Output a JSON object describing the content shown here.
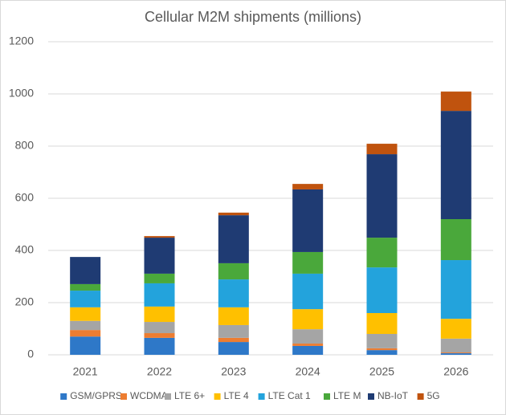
{
  "chart_data": {
    "type": "stacked_bar",
    "title": "Cellular M2M shipments (millions)",
    "categories": [
      "2021",
      "2022",
      "2023",
      "2024",
      "2025",
      "2026"
    ],
    "series": [
      {
        "name": "GSM/GPRS",
        "color": "#2e78c8",
        "values": [
          70,
          65,
          49,
          34,
          18,
          6
        ]
      },
      {
        "name": "WCDMA",
        "color": "#ed7d31",
        "values": [
          25,
          18,
          16,
          9,
          7,
          3
        ]
      },
      {
        "name": "LTE 6+",
        "color": "#a5a5a5",
        "values": [
          35,
          43,
          49,
          55,
          55,
          53
        ]
      },
      {
        "name": "LTE 4",
        "color": "#ffc000",
        "values": [
          52,
          59,
          68,
          77,
          80,
          76
        ]
      },
      {
        "name": "LTE Cat 1",
        "color": "#23a3dc",
        "values": [
          64,
          89,
          107,
          136,
          175,
          225
        ]
      },
      {
        "name": "LTE M",
        "color": "#4aa83b",
        "values": [
          25,
          37,
          62,
          83,
          114,
          157
        ]
      },
      {
        "name": "NB-IoT",
        "color": "#1f3b73",
        "values": [
          104,
          138,
          184,
          240,
          320,
          415
        ]
      },
      {
        "name": "5G",
        "color": "#c0530e",
        "values": [
          0,
          6,
          10,
          21,
          40,
          74
        ]
      }
    ],
    "ylim": [
      0,
      1200
    ],
    "yticks": [
      0,
      200,
      400,
      600,
      800,
      1000,
      1200
    ],
    "grid": true,
    "legend": "bottom"
  }
}
